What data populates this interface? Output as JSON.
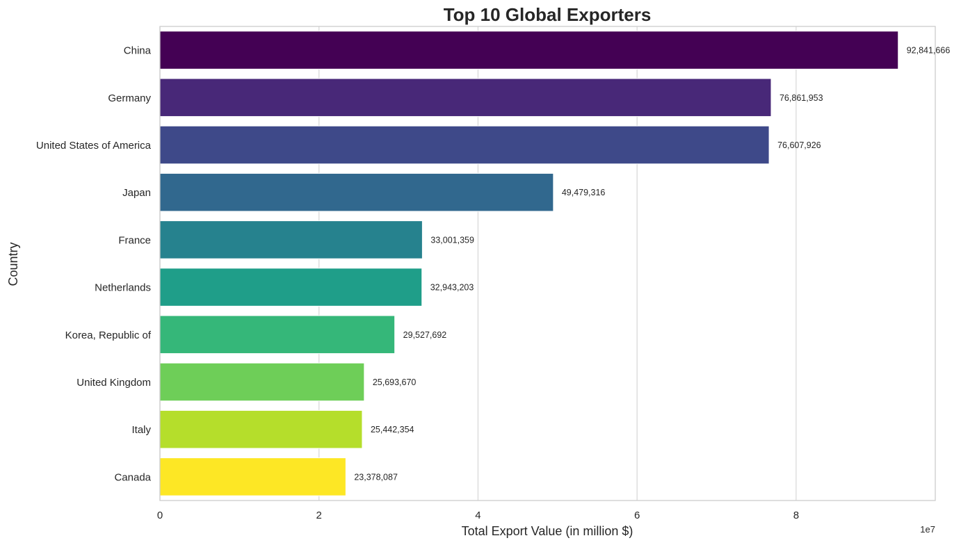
{
  "chart_data": {
    "type": "bar",
    "orientation": "horizontal",
    "title": "Top 10 Global Exporters",
    "xlabel": "Total Export Value (in million $)",
    "ylabel": "Country",
    "x_offset_label": "1e7",
    "xlim": [
      0,
      97500000
    ],
    "x_ticks": [
      0,
      20000000,
      40000000,
      60000000,
      80000000
    ],
    "x_tick_labels": [
      "0",
      "2",
      "4",
      "6",
      "8"
    ],
    "grid": "vertical",
    "categories": [
      "China",
      "Germany",
      "United States of America",
      "Japan",
      "France",
      "Netherlands",
      "Korea, Republic of",
      "United Kingdom",
      "Italy",
      "Canada"
    ],
    "values": [
      92841666,
      76861953,
      76607926,
      49479316,
      33001359,
      32943203,
      29527692,
      25693670,
      25442354,
      23378087
    ],
    "data_labels": [
      "92,841,666",
      "76,861,953",
      "76,607,926",
      "49,479,316",
      "33,001,359",
      "32,943,203",
      "29,527,692",
      "25,693,670",
      "25,442,354",
      "23,378,087"
    ],
    "colors": [
      "#440154",
      "#482878",
      "#3e4989",
      "#31688e",
      "#26828e",
      "#1f9e89",
      "#35b779",
      "#6ece58",
      "#b5de2b",
      "#fde725"
    ]
  }
}
